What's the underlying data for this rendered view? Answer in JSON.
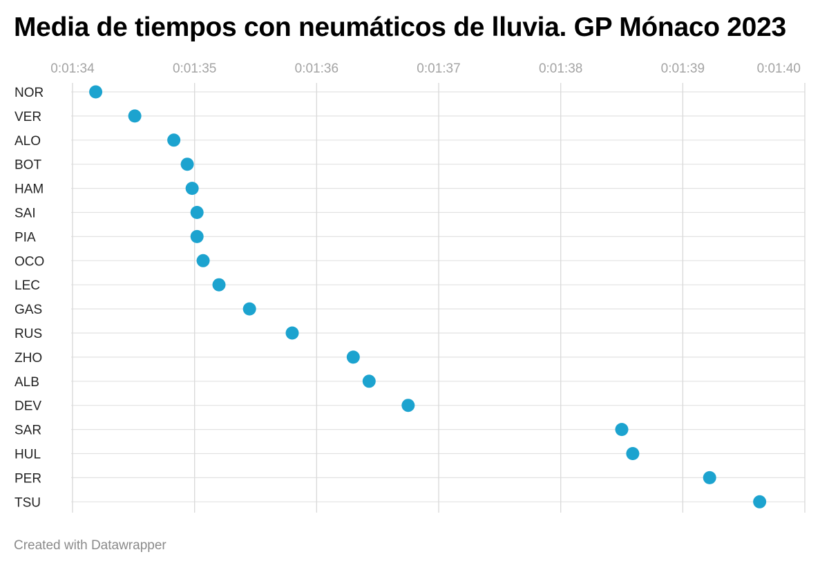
{
  "chart_data": {
    "type": "scatter",
    "title": "Media de tiempos con neumáticos de lluvia. GP Mónaco 2023",
    "footer": "Created with Datawrapper",
    "x_ticks": [
      {
        "label": "0:01:34",
        "value": 94
      },
      {
        "label": "0:01:35",
        "value": 95
      },
      {
        "label": "0:01:36",
        "value": 96
      },
      {
        "label": "0:01:37",
        "value": 97
      },
      {
        "label": "0:01:38",
        "value": 98
      },
      {
        "label": "0:01:39",
        "value": 99
      },
      {
        "label": "0:01:40",
        "value": 100
      }
    ],
    "xlim": [
      94,
      100
    ],
    "grid": true,
    "point_color": "#1ca3cf",
    "categories": [
      "NOR",
      "VER",
      "ALO",
      "BOT",
      "HAM",
      "SAI",
      "PIA",
      "OCO",
      "LEC",
      "GAS",
      "RUS",
      "ZHO",
      "ALB",
      "DEV",
      "SAR",
      "HUL",
      "PER",
      "TSU"
    ],
    "values": [
      94.19,
      94.51,
      94.83,
      94.94,
      94.98,
      95.02,
      95.02,
      95.07,
      95.2,
      95.45,
      95.8,
      96.3,
      96.43,
      96.75,
      98.5,
      98.59,
      99.22,
      99.63
    ]
  }
}
